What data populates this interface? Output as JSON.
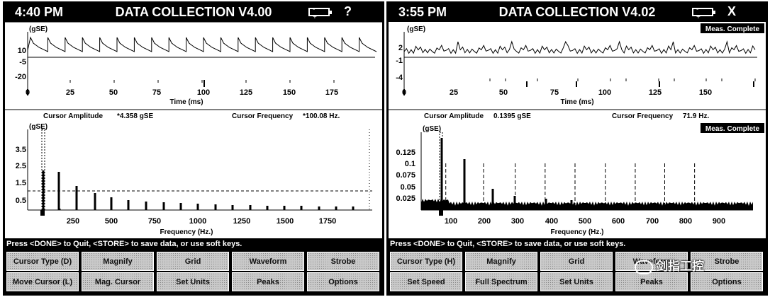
{
  "left": {
    "time": "4:40 PM",
    "title": "DATA COLLECTION V4.00",
    "battery_glyph": "- +",
    "mark": "?",
    "meas_status": "",
    "waveform": {
      "unit": "(gSE)",
      "y_ticks": [
        "10",
        "-5",
        "-20"
      ],
      "x_ticks": [
        "0",
        "25",
        "50",
        "75",
        "100",
        "125",
        "150",
        "175"
      ],
      "xlabel": "Time (ms)"
    },
    "cursor_amplitude_label": "Cursor Amplitude",
    "cursor_amplitude_value": "*4.358 gSE",
    "cursor_frequency_label": "Cursor Frequency",
    "cursor_frequency_value": "*100.08 Hz.",
    "spectrum": {
      "unit": "(gSE)",
      "y_ticks": [
        "3.5",
        "2.5",
        "1.5",
        "0.5"
      ],
      "x_ticks": [
        "250",
        "500",
        "750",
        "1000",
        "1250",
        "1500",
        "1750"
      ],
      "xlabel": "Frequency (Hz.)"
    },
    "status_text": "Press <DONE> to Quit, <STORE> to save data, or use soft keys.",
    "keys_row1": [
      "Cursor Type (D)",
      "Magnify",
      "Grid",
      "Waveform",
      "Strobe"
    ],
    "keys_row2": [
      "Move Cursor (L)",
      "Mag. Cursor",
      "Set Units",
      "Peaks",
      "Options"
    ]
  },
  "right": {
    "time": "3:55 PM",
    "title": "DATA COLLECTION V4.02",
    "battery_glyph": "- +",
    "mark": "X",
    "meas_status": "Meas. Complete",
    "waveform": {
      "unit": "(gSE)",
      "y_ticks": [
        "2",
        "-1",
        "-4"
      ],
      "x_ticks": [
        "0",
        "25",
        "50",
        "75",
        "100",
        "125",
        "150"
      ],
      "xlabel": "Time (ms)"
    },
    "cursor_amplitude_label": "Cursor Amplitude",
    "cursor_amplitude_value": "0.1395 gSE",
    "cursor_frequency_label": "Cursor Frequency",
    "cursor_frequency_value": "71.9 Hz.",
    "spectrum_meas_status": "Meas. Complete",
    "spectrum": {
      "unit": "(gSE)",
      "y_ticks": [
        "0.125",
        "0.1",
        "0.075",
        "0.05",
        "0.025"
      ],
      "x_ticks": [
        "100",
        "200",
        "300",
        "400",
        "500",
        "600",
        "700",
        "800",
        "900"
      ],
      "xlabel": "Frequency (Hz.)"
    },
    "status_text": "Press <DONE> to Quit, <STORE> to save data, or use soft keys.",
    "keys_row1": [
      "Cursor Type (H)",
      "Magnify",
      "Grid",
      "Waveform",
      "Strobe"
    ],
    "keys_row2": [
      "Set Speed",
      "Full Spectrum",
      "Set Units",
      "Peaks",
      "Options"
    ]
  },
  "watermark": "剑指工控"
}
